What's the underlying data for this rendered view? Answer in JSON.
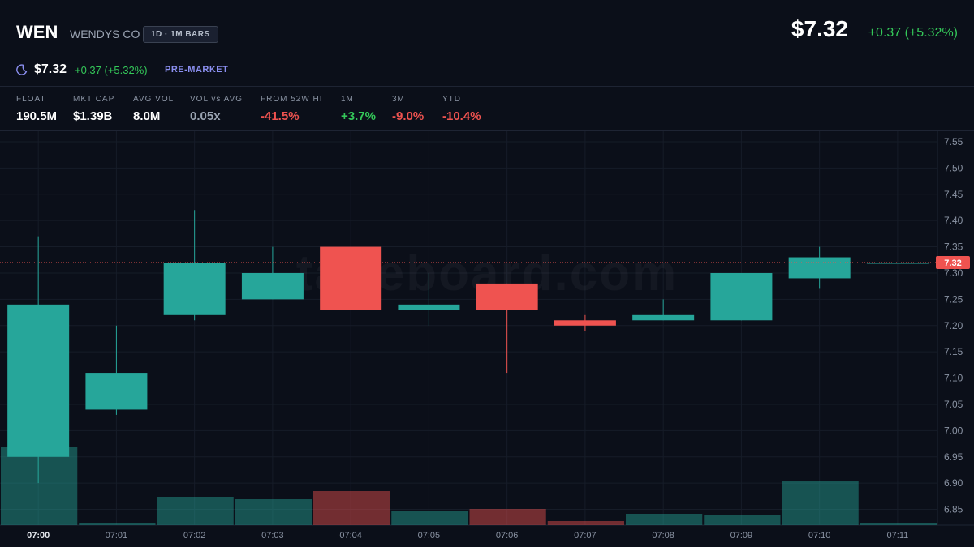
{
  "header": {
    "symbol": "WEN",
    "name": "WENDYS CO",
    "badge": "1D · 1M BARS",
    "price": "$7.32",
    "change": "+0.37 (+5.32%)",
    "premarket": {
      "price": "$7.32",
      "change": "+0.37 (+5.32%)",
      "label": "PRE-MARKET"
    }
  },
  "stats": [
    {
      "label": "FLOAT",
      "value": "190.5M"
    },
    {
      "label": "MKT CAP",
      "value": "$1.39B"
    },
    {
      "label": "AVG VOL",
      "value": "8.0M"
    },
    {
      "label": "VOL vs AVG",
      "value": "0.05x"
    },
    {
      "label": "FROM 52W HI",
      "value": "-41.5%"
    },
    {
      "label": "1M",
      "value": "+3.7%"
    },
    {
      "label": "3M",
      "value": "-9.0%"
    },
    {
      "label": "YTD",
      "value": "-10.4%"
    }
  ],
  "watermark": "tapeboard.com",
  "chart_data": {
    "type": "candlestick",
    "categories": [
      "07:00",
      "07:01",
      "07:02",
      "07:03",
      "07:04",
      "07:05",
      "07:06",
      "07:07",
      "07:08",
      "07:09",
      "07:10",
      "07:11"
    ],
    "open": [
      6.95,
      7.04,
      7.22,
      7.25,
      7.35,
      7.23,
      7.28,
      7.21,
      7.21,
      7.21,
      7.29,
      7.32
    ],
    "high": [
      7.37,
      7.2,
      7.42,
      7.35,
      7.35,
      7.3,
      7.28,
      7.22,
      7.25,
      7.3,
      7.35,
      7.32
    ],
    "low": [
      6.9,
      7.03,
      7.21,
      7.25,
      7.23,
      7.2,
      7.11,
      7.19,
      7.21,
      7.21,
      7.27,
      7.32
    ],
    "close": [
      7.24,
      7.11,
      7.32,
      7.3,
      7.23,
      7.24,
      7.23,
      7.2,
      7.22,
      7.3,
      7.33,
      7.32
    ],
    "volume": [
      97,
      3,
      35,
      32,
      42,
      18,
      20,
      5,
      14,
      12,
      54,
      2
    ],
    "up_color": "#26a69a",
    "down_color": "#ef5350",
    "last_price": 7.32,
    "ylim": [
      6.82,
      7.57
    ],
    "yticks": [
      7.55,
      {
        "value": 7.5,
        "label": "7.50"
      },
      7.45,
      {
        "value": 7.4,
        "label": "7.40"
      },
      7.35,
      {
        "value": 7.3,
        "label": "7.30"
      },
      7.25,
      {
        "value": 7.2,
        "label": "7.20"
      },
      7.15,
      {
        "value": 7.1,
        "label": "7.10"
      },
      7.05,
      {
        "value": 7,
        "label": "7.00"
      },
      6.95,
      {
        "value": 6.9,
        "label": "6.90"
      },
      6.85
    ],
    "grid": true
  }
}
